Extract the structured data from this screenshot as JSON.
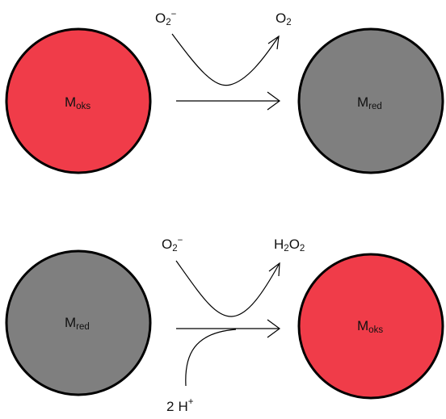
{
  "reaction_1": {
    "left_metal": {
      "symbol": "M",
      "subscript": "oks",
      "color": "#f03c49"
    },
    "right_metal": {
      "symbol": "M",
      "subscript": "red",
      "color": "#7f7f7f"
    },
    "reactant": {
      "base": "O",
      "subscript": "2",
      "charge": "−"
    },
    "product": {
      "base": "O",
      "subscript": "2"
    }
  },
  "reaction_2": {
    "left_metal": {
      "symbol": "M",
      "subscript": "red",
      "color": "#7f7f7f"
    },
    "right_metal": {
      "symbol": "M",
      "subscript": "oks",
      "color": "#f03c49"
    },
    "reactant": {
      "base": "O",
      "subscript": "2",
      "charge": "−"
    },
    "product": {
      "part1": "H",
      "sub1": "2",
      "part2": "O",
      "sub2": "2"
    },
    "co_reactant": {
      "coefficient": "2",
      "base": "H",
      "charge": "+"
    }
  }
}
